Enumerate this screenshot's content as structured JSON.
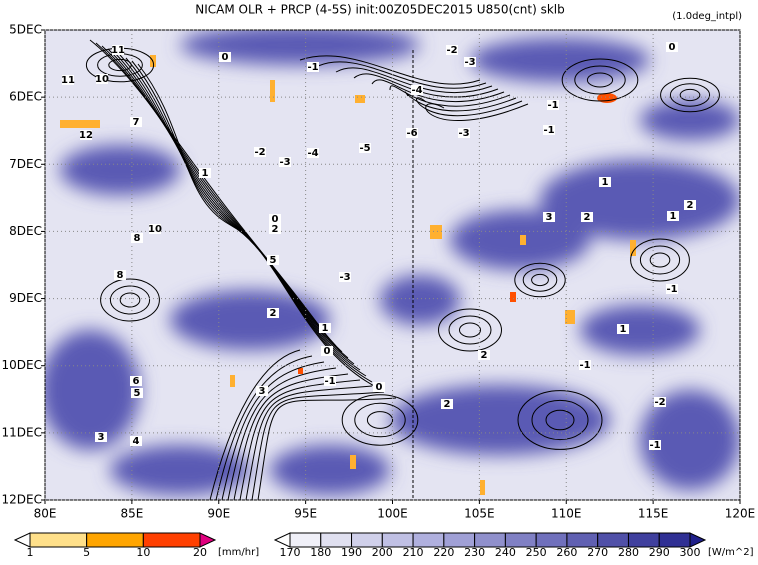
{
  "chart_data": {
    "type": "contour",
    "title": "NICAM  OLR + PRCP (4-5S) init:00Z05DEC2015 U850(cnt) sklb",
    "subtitle": "(1.0deg_intpl)",
    "xlim": [
      80,
      120
    ],
    "xticks": [
      {
        "value": 80,
        "label": "80E"
      },
      {
        "value": 85,
        "label": "85E"
      },
      {
        "value": 90,
        "label": "90E"
      },
      {
        "value": 95,
        "label": "95E"
      },
      {
        "value": 100,
        "label": "100E"
      },
      {
        "value": 105,
        "label": "105E"
      },
      {
        "value": 110,
        "label": "110E"
      },
      {
        "value": 115,
        "label": "115E"
      },
      {
        "value": 120,
        "label": "120E"
      }
    ],
    "ylim": [
      5,
      12
    ],
    "yticks": [
      {
        "value": 5,
        "label": "5DEC"
      },
      {
        "value": 6,
        "label": "6DEC"
      },
      {
        "value": 7,
        "label": "7DEC"
      },
      {
        "value": 8,
        "label": "8DEC"
      },
      {
        "value": 9,
        "label": "9DEC"
      },
      {
        "value": 10,
        "label": "10DEC"
      },
      {
        "value": 11,
        "label": "11DEC"
      },
      {
        "value": 12,
        "label": "12DEC"
      }
    ],
    "contour_labels": [
      11,
      10,
      11,
      12,
      7,
      0,
      -1,
      -2,
      -3,
      -4,
      -5,
      -6,
      -3,
      -1,
      0,
      -1,
      -2,
      -3,
      -4,
      1,
      0,
      2,
      10,
      8,
      5,
      8,
      -3,
      1,
      2,
      3,
      1,
      2,
      -1,
      2,
      1,
      0,
      -1,
      3,
      6,
      5,
      3,
      4,
      0,
      2,
      -1,
      -2,
      -1,
      2,
      1
    ],
    "prcp_colorbar": {
      "ticks": [
        1,
        5,
        10,
        20
      ],
      "unit": "[mm/hr]",
      "colors": [
        "#ffffff",
        "#ffe08a",
        "#ffa500",
        "#ff4000",
        "#e0007f"
      ]
    },
    "olr_colorbar": {
      "ticks": [
        170,
        180,
        190,
        200,
        210,
        220,
        230,
        240,
        250,
        260,
        270,
        280,
        290,
        300
      ],
      "unit": "[W/m^2]",
      "colors": [
        "#ffffff",
        "#f0f0f8",
        "#e0e0f0",
        "#d0d0ea",
        "#c0c0e4",
        "#b0b0de",
        "#a0a0d6",
        "#9090cc",
        "#8080c4",
        "#7070bc",
        "#6060b2",
        "#5050a8",
        "#40409e",
        "#303094",
        "#20208a"
      ]
    }
  }
}
